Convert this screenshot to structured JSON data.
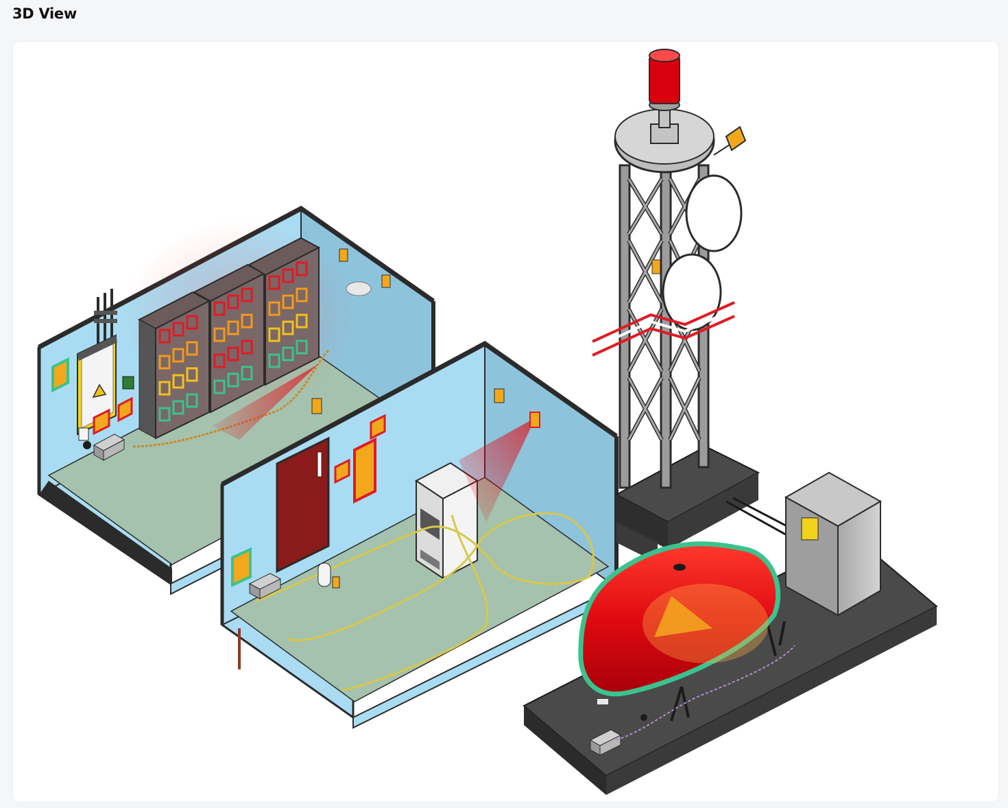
{
  "header": {
    "title": "3D View"
  },
  "scene": {
    "colors": {
      "wall": "#a9dcf2",
      "wall_side": "#8ec3dc",
      "floor": "#a4c2ae",
      "outline": "#2b2b2b",
      "alert_red": "#e01b24",
      "sensor_orange": "#f2a81d",
      "ok_green": "#3cc28e",
      "warn_yellow": "#f2d21b",
      "tank_red": "#d9000d",
      "concrete": "#3d3d3d"
    },
    "icons": [
      "warning-icon",
      "beacon-light",
      "dish-antenna",
      "door",
      "server-rack",
      "battery-rack",
      "electrical-cabinet",
      "fuel-tank"
    ]
  }
}
